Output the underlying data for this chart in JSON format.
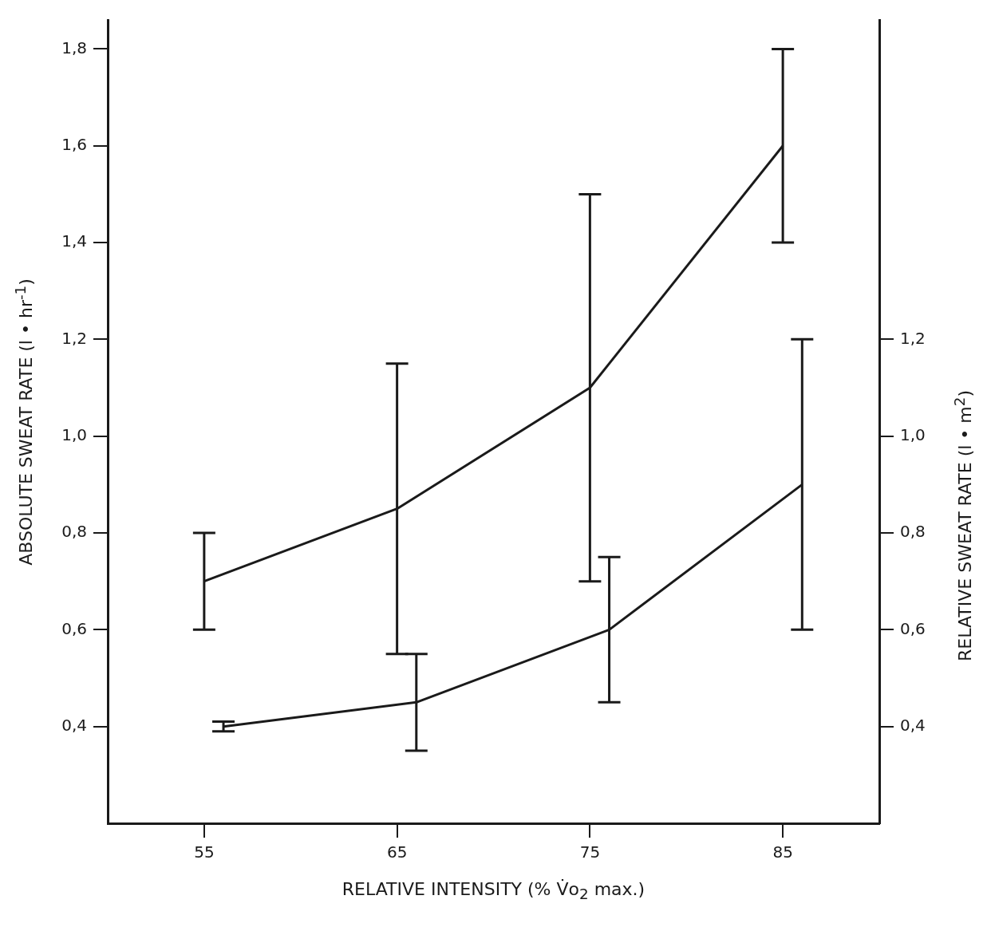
{
  "chart_data": {
    "type": "line",
    "xlabel": "RELATIVE INTENSITY (% V̇o$_{2}$ max.)",
    "ylabel": "ABSOLUTE SWEAT RATE (l • hr$^{-1}$)",
    "y2label": "RELATIVE SWEAT RATE (l • m$^{2}$)",
    "xlim": [
      50,
      90
    ],
    "xticks": [
      55,
      65,
      75,
      85
    ],
    "ylim": [
      0.2,
      1.86
    ],
    "yticks": [
      {
        "value": 0.4,
        "label": "0,4"
      },
      {
        "value": 0.6,
        "label": "0,6"
      },
      {
        "value": 0.8,
        "label": "0,8"
      },
      {
        "value": 1.0,
        "label": "1,0"
      },
      {
        "value": 1.2,
        "label": "1,2"
      },
      {
        "value": 1.4,
        "label": "1,4"
      },
      {
        "value": 1.6,
        "label": "1,6"
      },
      {
        "value": 1.8,
        "label": "1,8"
      }
    ],
    "y2lim": [
      0.2,
      1.86
    ],
    "y2ticks": [
      {
        "value": 0.4,
        "label": "0,4"
      },
      {
        "value": 0.6,
        "label": "0,6"
      },
      {
        "value": 0.8,
        "label": "0,8"
      },
      {
        "value": 1.0,
        "label": "1,0"
      },
      {
        "value": 1.2,
        "label": "1,2"
      }
    ],
    "grid": false,
    "legend": false,
    "marker": "none",
    "line_style": "solid",
    "series": [
      {
        "color": "#1a1a1a",
        "x": [
          55,
          65,
          75,
          85
        ],
        "values": [
          0.7,
          0.85,
          1.1,
          1.6
        ],
        "errors": [
          [
            0.6,
            0.8
          ],
          [
            0.55,
            1.15
          ],
          [
            0.7,
            1.5
          ],
          [
            1.4,
            1.8
          ]
        ]
      },
      {
        "color": "#1a1a1a",
        "axis": "y2",
        "x": [
          56,
          66,
          76,
          86
        ],
        "values": [
          0.4,
          0.45,
          0.6,
          0.9
        ],
        "errors": [
          [
            0.39,
            0.41
          ],
          [
            0.35,
            0.55
          ],
          [
            0.45,
            0.75
          ],
          [
            0.6,
            1.2
          ]
        ]
      }
    ]
  }
}
